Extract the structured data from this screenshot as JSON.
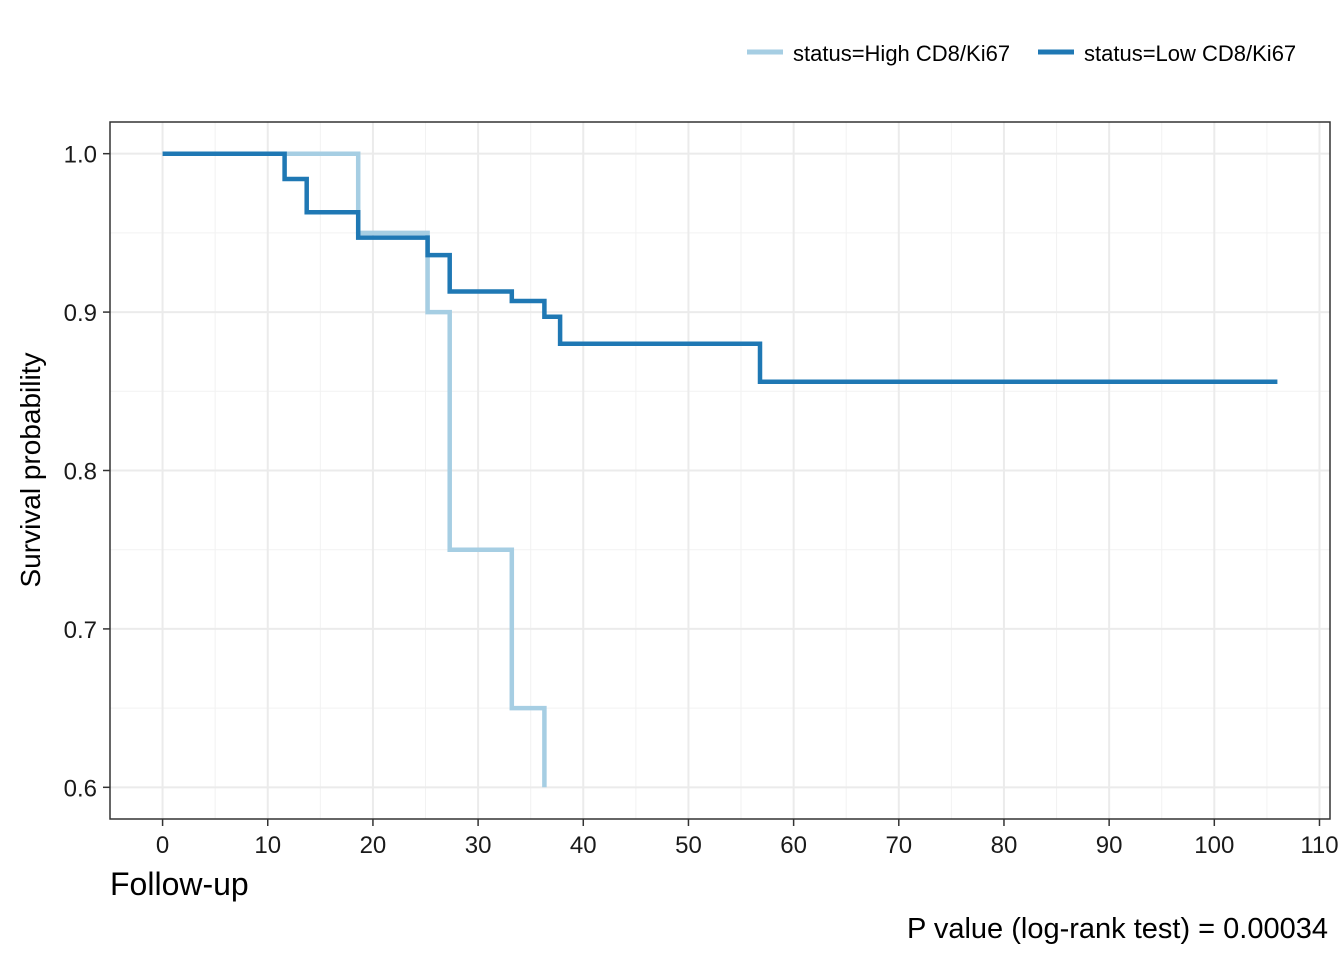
{
  "chart_data": {
    "type": "line",
    "step": true,
    "title": "",
    "xlabel": "Follow-up",
    "ylabel": "Survival probability",
    "xlim": [
      -5,
      111
    ],
    "ylim": [
      0.58,
      1.02
    ],
    "x_ticks": [
      0,
      10,
      20,
      30,
      40,
      50,
      60,
      70,
      80,
      90,
      100,
      110
    ],
    "y_ticks": [
      0.6,
      0.7,
      0.8,
      0.9,
      1.0
    ],
    "y_tick_labels": [
      "0.6",
      "0.7",
      "0.8",
      "0.9",
      "1.0"
    ],
    "grid": true,
    "legend_position": "top-right",
    "annotation": "P value (log-rank test) = 0.00034",
    "series": [
      {
        "name": "status=High CD8/Ki67",
        "color": "#a6cee3",
        "points": [
          [
            0,
            1.0
          ],
          [
            18.6,
            1.0
          ],
          [
            18.6,
            0.95
          ],
          [
            25.2,
            0.95
          ],
          [
            25.2,
            0.9
          ],
          [
            27.3,
            0.9
          ],
          [
            27.3,
            0.75
          ],
          [
            33.2,
            0.75
          ],
          [
            33.2,
            0.65
          ],
          [
            36.3,
            0.65
          ],
          [
            36.3,
            0.6
          ]
        ]
      },
      {
        "name": "status=Low CD8/Ki67",
        "color": "#1f78b4",
        "points": [
          [
            0,
            1.0
          ],
          [
            11.6,
            1.0
          ],
          [
            11.6,
            0.984
          ],
          [
            13.7,
            0.984
          ],
          [
            13.7,
            0.963
          ],
          [
            18.6,
            0.963
          ],
          [
            18.6,
            0.947
          ],
          [
            25.2,
            0.947
          ],
          [
            25.2,
            0.936
          ],
          [
            27.3,
            0.936
          ],
          [
            27.3,
            0.913
          ],
          [
            33.2,
            0.913
          ],
          [
            33.2,
            0.907
          ],
          [
            36.3,
            0.907
          ],
          [
            36.3,
            0.897
          ],
          [
            37.8,
            0.897
          ],
          [
            37.8,
            0.88
          ],
          [
            56.8,
            0.88
          ],
          [
            56.8,
            0.856
          ],
          [
            106,
            0.856
          ]
        ]
      }
    ]
  }
}
